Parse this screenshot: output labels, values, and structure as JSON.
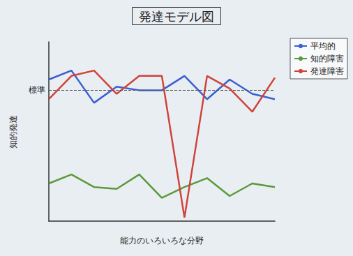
{
  "chart_data": {
    "type": "line",
    "title": "発達モデル図",
    "x_label": "能力のいろいろな分野",
    "y_label": "知的発達",
    "categories": [
      null,
      null,
      null,
      null,
      null,
      null,
      null,
      null,
      null,
      null,
      null
    ],
    "series": [
      {
        "name": "平均的",
        "color": "#3b5fd0",
        "values": [
          79,
          84,
          66,
          75,
          73,
          73,
          81,
          68,
          79,
          71,
          68
        ]
      },
      {
        "name": "知的障害",
        "color": "#5a9a3a",
        "values": [
          21,
          26,
          19,
          18,
          26,
          13,
          19,
          24,
          14,
          21,
          19
        ]
      },
      {
        "name": "発達障害",
        "color": "#d0433a",
        "values": [
          68,
          81,
          84,
          71,
          81,
          81,
          2,
          81,
          74,
          61,
          80
        ]
      }
    ],
    "reference_line": {
      "label": "標準",
      "value": 73
    },
    "ylim": [
      0,
      100
    ],
    "tick_labels": false,
    "grid": false,
    "legend": "top-right"
  }
}
